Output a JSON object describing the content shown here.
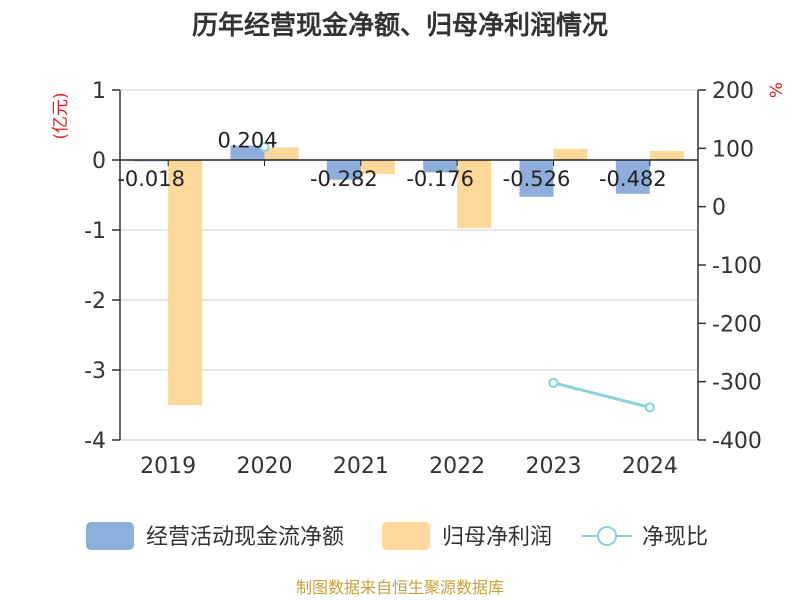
{
  "chart_data": {
    "type": "bar",
    "title": "历年经营现金净额、归母净利润情况",
    "categories": [
      "2019",
      "2020",
      "2021",
      "2022",
      "2023",
      "2024"
    ],
    "left_axis": {
      "unit": "(亿元)",
      "ylim": [
        -4,
        1
      ],
      "ticks": [
        "1",
        "0",
        "-1",
        "-2",
        "-3",
        "-4"
      ]
    },
    "right_axis": {
      "unit": "%",
      "ylim": [
        -400,
        200
      ],
      "ticks": [
        "200",
        "100",
        "0",
        "-100",
        "-200",
        "-300",
        "-400"
      ]
    },
    "series": [
      {
        "name": "经营活动现金流净额",
        "type": "bar",
        "axis": "left",
        "color": "#8eaedc",
        "values": [
          -0.018,
          0.204,
          -0.282,
          -0.176,
          -0.526,
          -0.482
        ],
        "labels": [
          "-0.018",
          "0.204",
          "-0.282",
          "-0.176",
          "-0.526",
          "-0.482"
        ]
      },
      {
        "name": "归母净利润",
        "type": "bar",
        "axis": "left",
        "color": "#fdd89a",
        "values": [
          -3.5,
          0.18,
          -0.2,
          -0.97,
          0.16,
          0.13
        ]
      },
      {
        "name": "净现比",
        "type": "line",
        "axis": "right",
        "color": "#86d3d8",
        "values": [
          null,
          102,
          null,
          null,
          -302,
          -344
        ]
      }
    ],
    "grid": true,
    "legend_position": "bottom"
  },
  "source_text": "制图数据来自恒生聚源数据库"
}
